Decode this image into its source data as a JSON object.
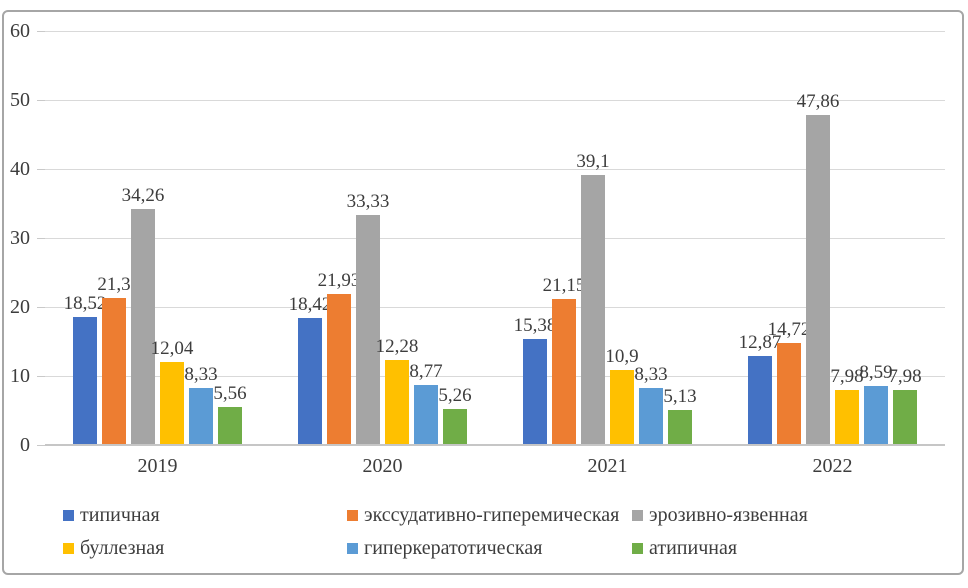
{
  "chart_data": {
    "type": "bar",
    "title": "",
    "xlabel": "",
    "ylabel": "",
    "categories": [
      "2019",
      "2020",
      "2021",
      "2022"
    ],
    "series": [
      {
        "name": "типичная",
        "color": "#4472C4",
        "values": [
          18.52,
          18.42,
          15.38,
          12.87
        ],
        "labels": [
          "18,52",
          "18,42",
          "15,38",
          "12,87"
        ]
      },
      {
        "name": "экссудативно-гиперемическая",
        "color": "#ED7D31",
        "values": [
          21.3,
          21.93,
          21.15,
          14.72
        ],
        "labels": [
          "21,3",
          "21,93",
          "21,15",
          "14,72"
        ]
      },
      {
        "name": "эрозивно-язвенная",
        "color": "#A5A5A5",
        "values": [
          34.26,
          33.33,
          39.1,
          47.86
        ],
        "labels": [
          "34,26",
          "33,33",
          "39,1",
          "47,86"
        ]
      },
      {
        "name": "буллезная",
        "color": "#FFC000",
        "values": [
          12.04,
          12.28,
          10.9,
          7.98
        ],
        "labels": [
          "12,04",
          "12,28",
          "10,9",
          "7,98"
        ]
      },
      {
        "name": "гиперкератотическая",
        "color": "#5B9BD5",
        "values": [
          8.33,
          8.77,
          8.33,
          8.59
        ],
        "labels": [
          "8,33",
          "8,77",
          "8,33",
          "8,59"
        ]
      },
      {
        "name": "атипичная",
        "color": "#70AD47",
        "values": [
          5.56,
          5.26,
          5.13,
          7.98
        ],
        "labels": [
          "5,56",
          "5,26",
          "5,13",
          "7,98"
        ]
      }
    ],
    "ylim": [
      0,
      60
    ],
    "yticks": [
      0,
      10,
      20,
      30,
      40,
      50,
      60
    ],
    "grid": true,
    "gridline_color": "#d9d9d9",
    "text_color": "#3d3d3d",
    "frame_border_color": "#a6a6a6",
    "legend_position": "bottom",
    "decimal_separator": ","
  }
}
